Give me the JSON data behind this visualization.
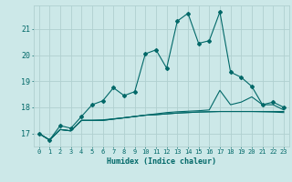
{
  "xlabel": "Humidex (Indice chaleur)",
  "bg_color": "#cce8e8",
  "grid_color": "#b0d0d0",
  "line_color": "#006868",
  "xlim": [
    -0.5,
    23.5
  ],
  "ylim": [
    16.5,
    21.9
  ],
  "yticks": [
    17,
    18,
    19,
    20,
    21
  ],
  "xticks": [
    0,
    1,
    2,
    3,
    4,
    5,
    6,
    7,
    8,
    9,
    10,
    11,
    12,
    13,
    14,
    15,
    16,
    17,
    18,
    19,
    20,
    21,
    22,
    23
  ],
  "series1": [
    17.0,
    16.75,
    17.3,
    17.2,
    17.65,
    18.1,
    18.25,
    18.75,
    18.45,
    18.6,
    20.05,
    20.2,
    19.5,
    21.3,
    21.6,
    20.45,
    20.55,
    21.65,
    19.35,
    19.15,
    18.8,
    18.1,
    18.2,
    18.0
  ],
  "series2": [
    17.0,
    16.75,
    17.15,
    17.1,
    17.5,
    17.5,
    17.5,
    17.55,
    17.6,
    17.65,
    17.7,
    17.72,
    17.75,
    17.78,
    17.8,
    17.82,
    17.83,
    17.84,
    17.84,
    17.84,
    17.84,
    17.83,
    17.82,
    17.8
  ],
  "series3": [
    17.0,
    16.75,
    17.15,
    17.1,
    17.5,
    17.5,
    17.5,
    17.55,
    17.6,
    17.65,
    17.7,
    17.75,
    17.8,
    17.83,
    17.85,
    17.87,
    17.9,
    18.65,
    18.1,
    18.2,
    18.4,
    18.1,
    18.1,
    17.9
  ],
  "series4": [
    17.0,
    16.75,
    17.15,
    17.1,
    17.5,
    17.5,
    17.52,
    17.56,
    17.6,
    17.65,
    17.7,
    17.72,
    17.75,
    17.78,
    17.8,
    17.82,
    17.83,
    17.84,
    17.84,
    17.84,
    17.84,
    17.84,
    17.84,
    17.84
  ]
}
